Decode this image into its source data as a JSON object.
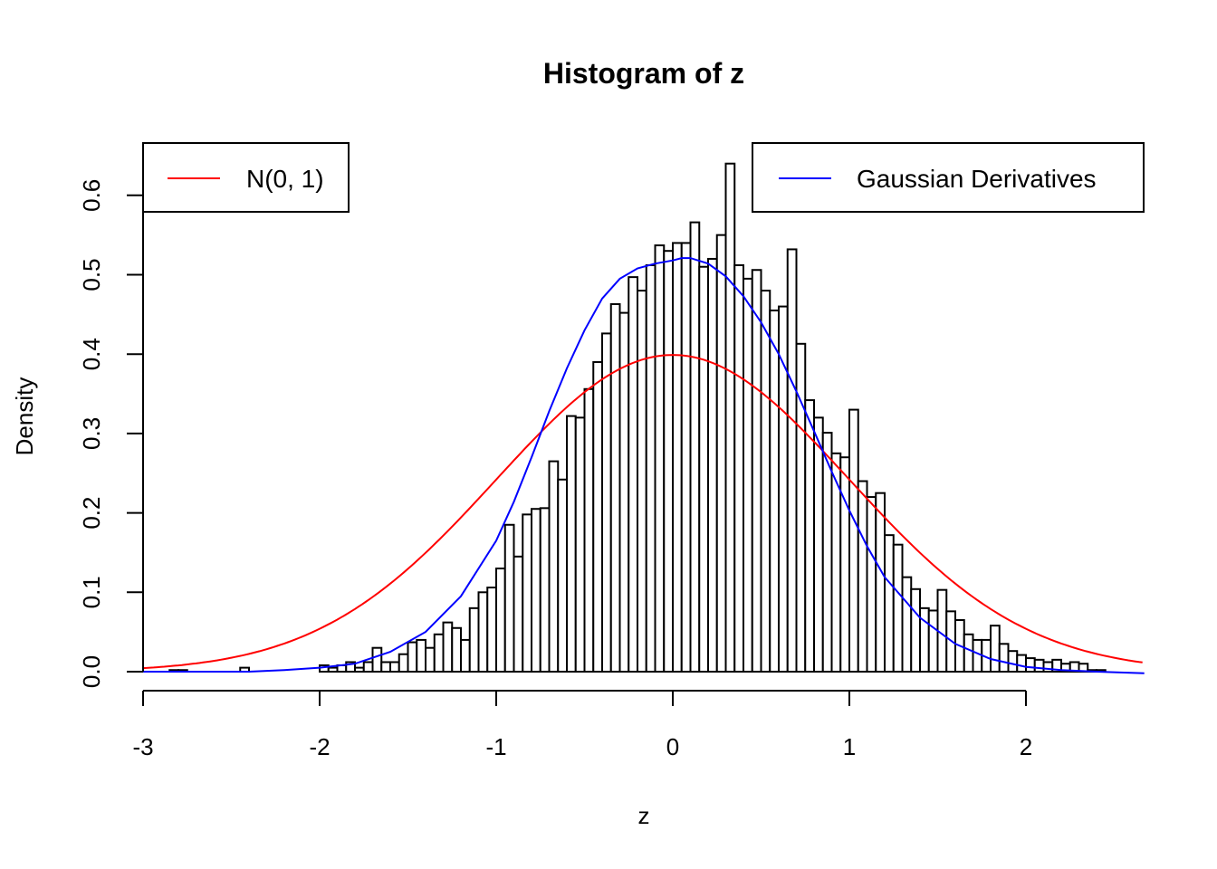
{
  "chart_data": {
    "type": "bar",
    "title": "Histogram of z",
    "xlabel": "z",
    "ylabel": "Density",
    "xlim": [
      -3,
      2.67
    ],
    "ylim": [
      0,
      0.6
    ],
    "x_ticks": [
      "-3",
      "-2",
      "-1",
      "0",
      "1",
      "2"
    ],
    "x_tick_values": [
      -3,
      -2,
      -1,
      0,
      1,
      2
    ],
    "y_ticks": [
      "0.0",
      "0.1",
      "0.2",
      "0.3",
      "0.4",
      "0.5",
      "0.6"
    ],
    "y_tick_values": [
      0,
      0.1,
      0.2,
      0.3,
      0.4,
      0.5,
      0.6
    ],
    "histogram": {
      "bin_start": -2.85,
      "bin_width": 0.05,
      "densities": [
        0.002,
        0.002,
        0.0,
        0.0,
        0.0,
        0.0,
        0.0,
        0.0,
        0.005,
        0.0,
        0.0,
        0.0,
        0.0,
        0.0,
        0.0,
        0.0,
        0.0,
        0.008,
        0.005,
        0.008,
        0.012,
        0.005,
        0.012,
        0.03,
        0.012,
        0.012,
        0.022,
        0.037,
        0.04,
        0.03,
        0.047,
        0.062,
        0.055,
        0.04,
        0.08,
        0.1,
        0.106,
        0.13,
        0.185,
        0.145,
        0.198,
        0.205,
        0.206,
        0.265,
        0.242,
        0.322,
        0.32,
        0.356,
        0.39,
        0.426,
        0.463,
        0.452,
        0.497,
        0.48,
        0.512,
        0.537,
        0.53,
        0.54,
        0.54,
        0.566,
        0.51,
        0.52,
        0.55,
        0.64,
        0.512,
        0.495,
        0.506,
        0.48,
        0.455,
        0.46,
        0.532,
        0.413,
        0.342,
        0.32,
        0.301,
        0.275,
        0.27,
        0.33,
        0.24,
        0.22,
        0.225,
        0.172,
        0.16,
        0.119,
        0.104,
        0.08,
        0.077,
        0.103,
        0.076,
        0.065,
        0.047,
        0.04,
        0.04,
        0.058,
        0.035,
        0.026,
        0.021,
        0.017,
        0.015,
        0.012,
        0.015,
        0.01,
        0.012,
        0.01,
        0.002,
        0.002
      ]
    },
    "series": [
      {
        "name": "N(0, 1)",
        "color": "#ff0000",
        "kind": "curve",
        "function": "normal_pdf",
        "mean": 0,
        "sd": 1
      },
      {
        "name": "Gaussian Derivatives",
        "color": "#0000ff",
        "kind": "curve",
        "points": [
          [
            -3.0,
            0.0
          ],
          [
            -2.8,
            0.0
          ],
          [
            -2.6,
            0.0
          ],
          [
            -2.4,
            0.0
          ],
          [
            -2.2,
            0.002
          ],
          [
            -2.0,
            0.005
          ],
          [
            -1.8,
            0.01
          ],
          [
            -1.6,
            0.025
          ],
          [
            -1.4,
            0.05
          ],
          [
            -1.2,
            0.095
          ],
          [
            -1.0,
            0.165
          ],
          [
            -0.9,
            0.214
          ],
          [
            -0.8,
            0.27
          ],
          [
            -0.7,
            0.328
          ],
          [
            -0.6,
            0.382
          ],
          [
            -0.5,
            0.43
          ],
          [
            -0.4,
            0.47
          ],
          [
            -0.3,
            0.495
          ],
          [
            -0.2,
            0.508
          ],
          [
            -0.1,
            0.514
          ],
          [
            0.0,
            0.518
          ],
          [
            0.05,
            0.521
          ],
          [
            0.1,
            0.521
          ],
          [
            0.2,
            0.514
          ],
          [
            0.3,
            0.498
          ],
          [
            0.4,
            0.473
          ],
          [
            0.5,
            0.44
          ],
          [
            0.6,
            0.4
          ],
          [
            0.7,
            0.353
          ],
          [
            0.8,
            0.303
          ],
          [
            0.9,
            0.252
          ],
          [
            1.0,
            0.203
          ],
          [
            1.1,
            0.158
          ],
          [
            1.2,
            0.119
          ],
          [
            1.4,
            0.068
          ],
          [
            1.6,
            0.035
          ],
          [
            1.8,
            0.016
          ],
          [
            2.0,
            0.006
          ],
          [
            2.2,
            0.002
          ],
          [
            2.4,
            0.0
          ],
          [
            2.67,
            -0.002
          ]
        ]
      }
    ],
    "legends": [
      {
        "position": "top-left",
        "label": "N(0, 1)",
        "color": "#ff0000"
      },
      {
        "position": "top-right",
        "label": "Gaussian Derivatives",
        "color": "#0000ff"
      }
    ]
  }
}
